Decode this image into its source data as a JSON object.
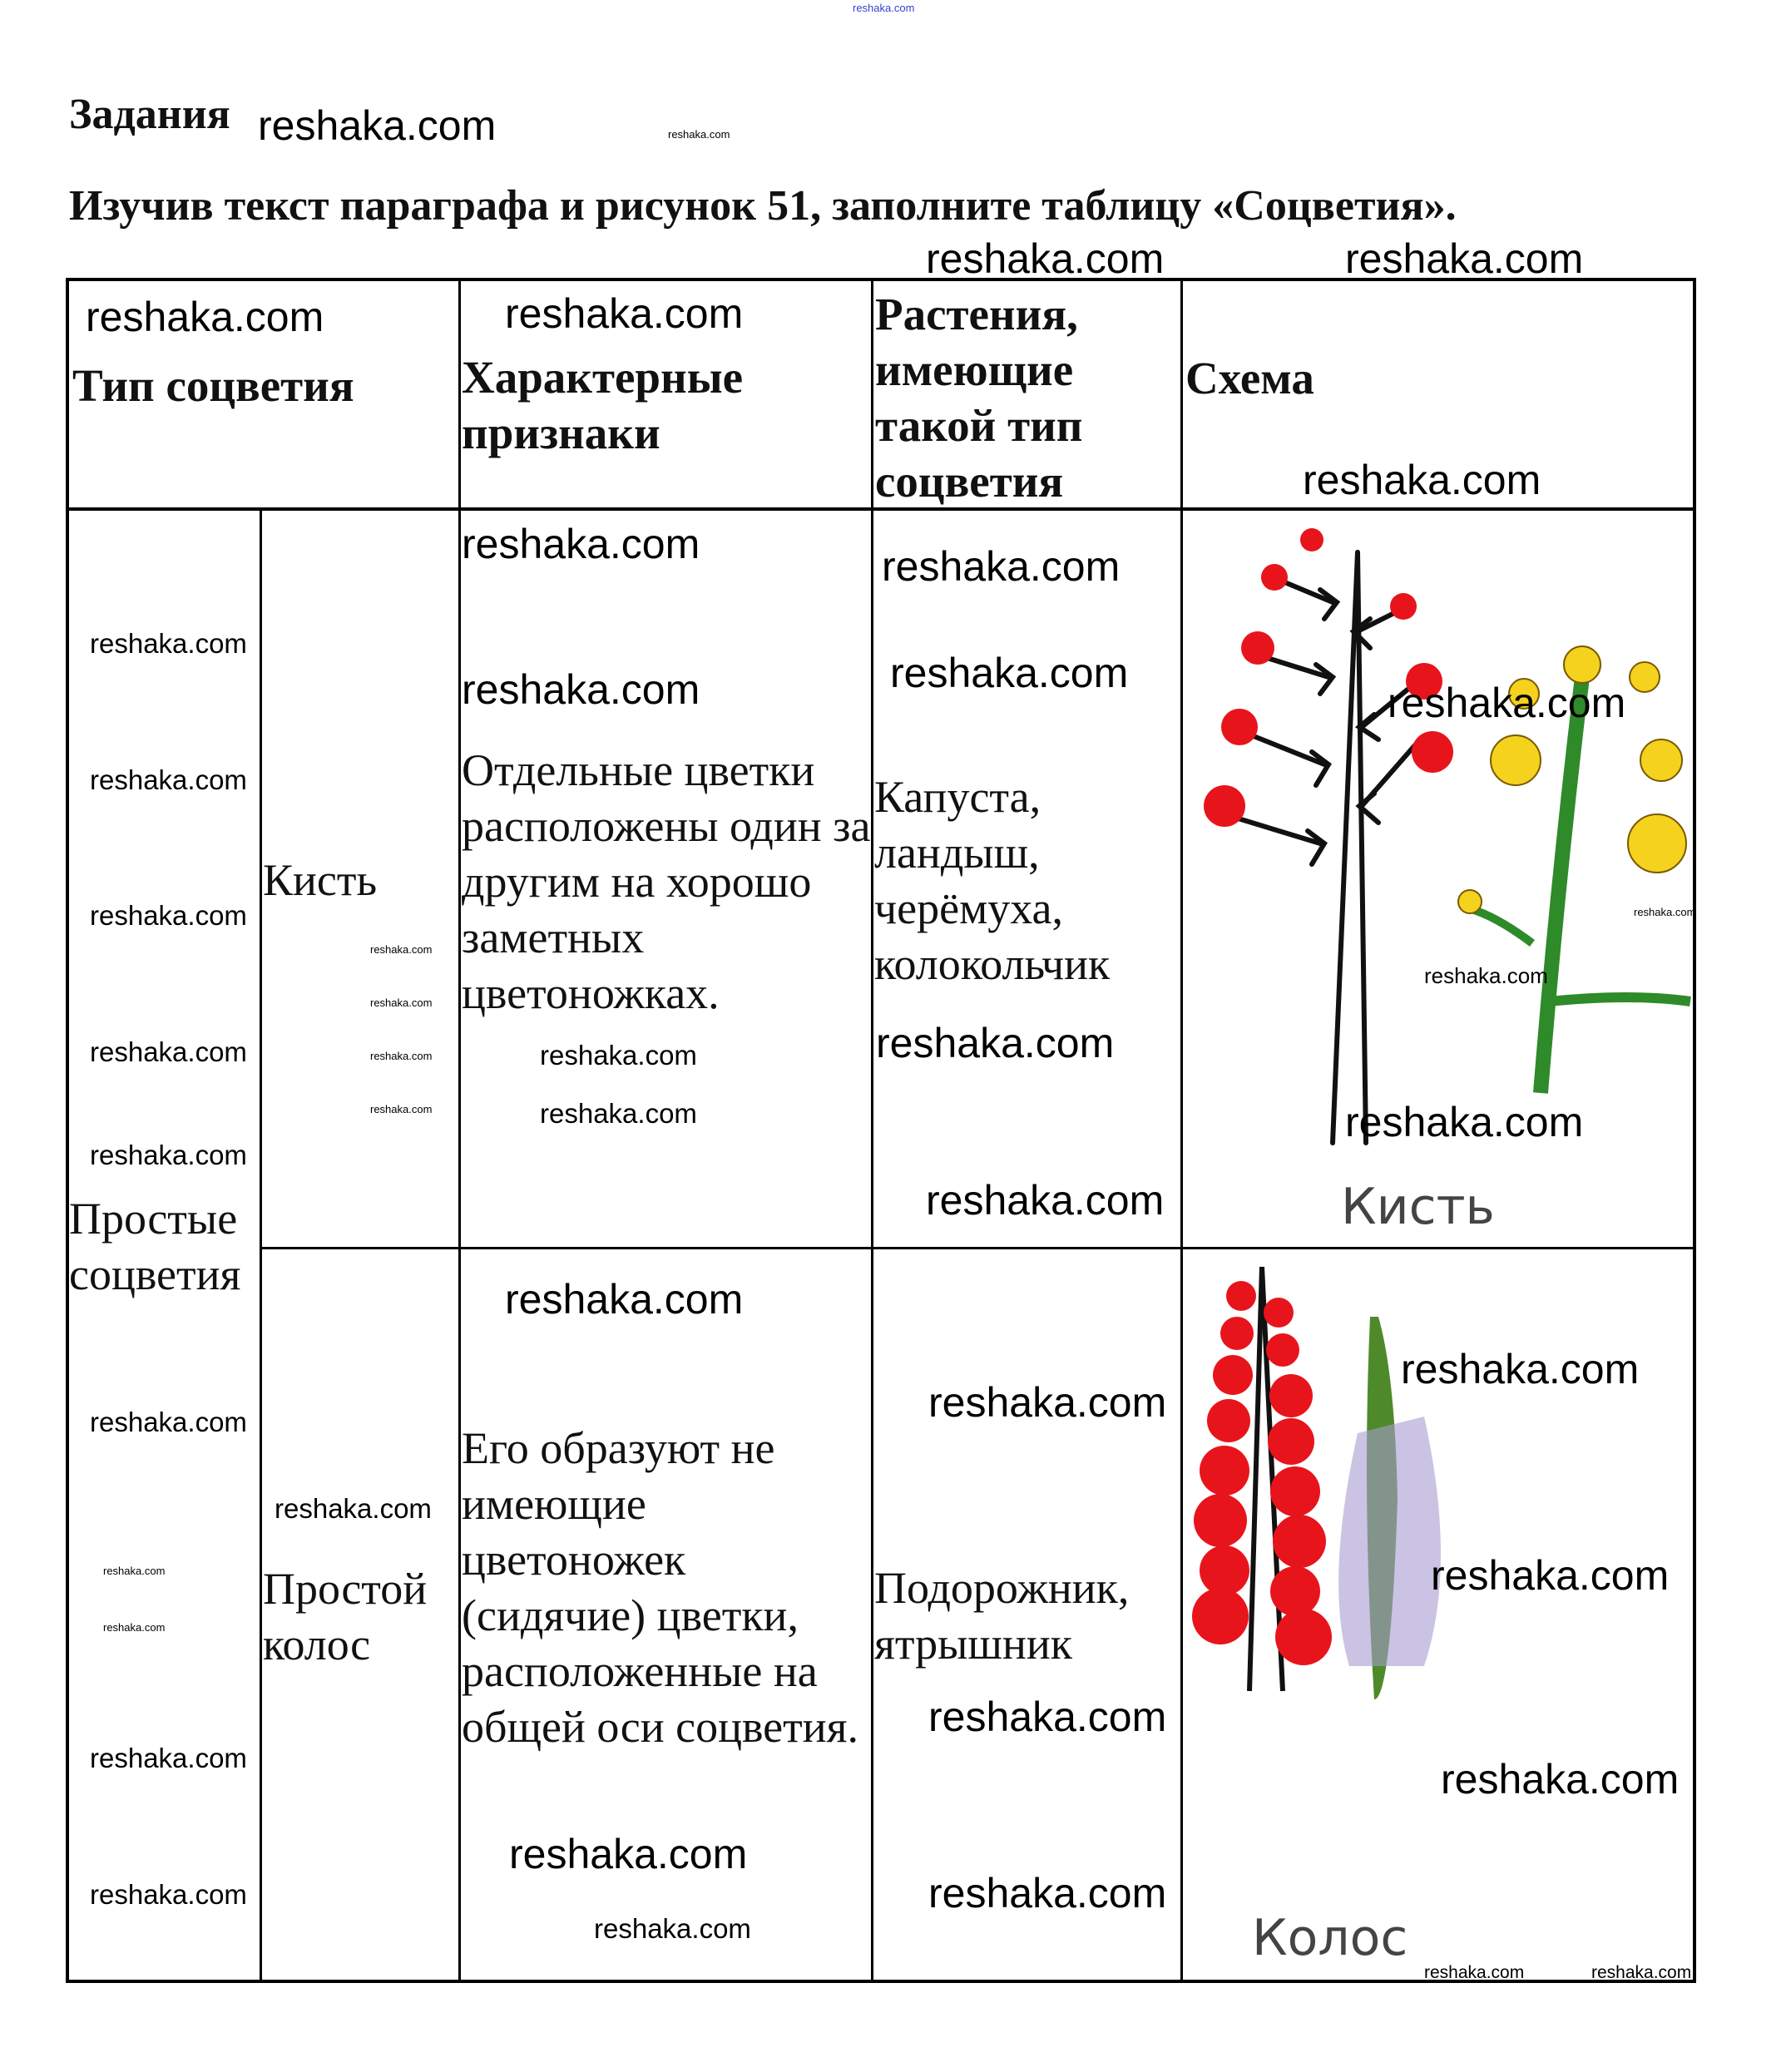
{
  "page": {
    "heading": "Задания",
    "instruction": "Изучив текст параграфа и рисунок 51, заполните таблицу «Соцветия»."
  },
  "table": {
    "headers": {
      "type": "Тип соцветия",
      "features": "Характерные признаки",
      "plants": "Растения, имеющие такой тип соцветия",
      "scheme": "Схема"
    },
    "group": "Простые соцветия",
    "rows": [
      {
        "type": "Кисть",
        "features": "Отдельные цветки расположены один за другим на хорошо заметных цветоножках.",
        "plants": "Капуста, ландыш, черёмуха, колокольчик",
        "scheme_caption": "Кисть"
      },
      {
        "type": "Простой колос",
        "features": "Его образуют не имеющие цветоножек (сидячие) цветки, расположенные на общей оси соцветия.",
        "plants": "Подорожник, ятрышник",
        "scheme_caption": "Колос"
      }
    ]
  },
  "watermark": {
    "text": "reshaka.com"
  },
  "colors": {
    "flower_red": "#e8141c",
    "flower_yellow": "#f5d21e",
    "stem_green": "#2f8a2a",
    "spike_purple": "#a79bd0",
    "top_watermark": "#3344cc"
  }
}
